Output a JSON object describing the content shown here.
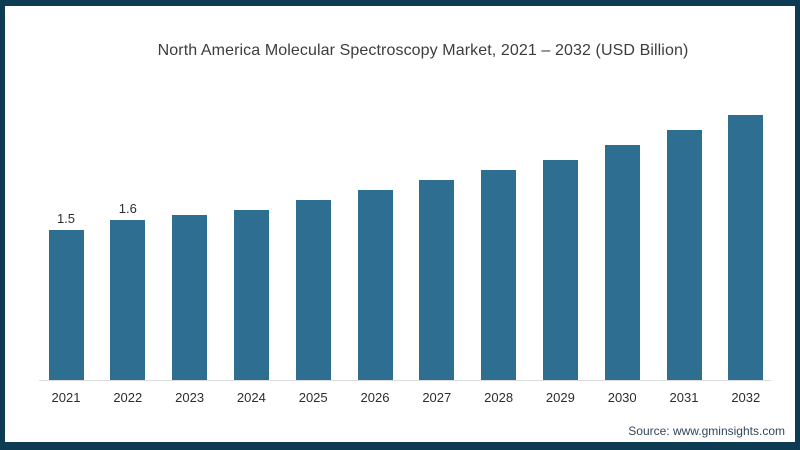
{
  "chart_data": {
    "type": "bar",
    "title": "North America Molecular Spectroscopy Market, 2021 – 2032 (USD Billion)",
    "categories": [
      "2021",
      "2022",
      "2023",
      "2024",
      "2025",
      "2026",
      "2027",
      "2028",
      "2029",
      "2030",
      "2031",
      "2032"
    ],
    "values": [
      1.5,
      1.6,
      1.65,
      1.7,
      1.8,
      1.9,
      2.0,
      2.1,
      2.2,
      2.35,
      2.5,
      2.65
    ],
    "point_labels": [
      "1.5",
      "1.6",
      "",
      "",
      "",
      "",
      "",
      "",
      "",
      "",
      "",
      ""
    ],
    "xlabel": "",
    "ylabel": "",
    "ylim": [
      0,
      2.8
    ],
    "grid": false,
    "legend": false,
    "bar_color": "#2e6e90"
  },
  "source": {
    "text": "Source: www.gminsights.com"
  },
  "colors": {
    "border": "#0d3b53",
    "bar": "#2e6e90",
    "title_text": "#3d3d3d",
    "label_text": "#2d2d2d",
    "axis_line": "#dcdcdc",
    "source_text": "#31475c",
    "background": "#ffffff"
  }
}
